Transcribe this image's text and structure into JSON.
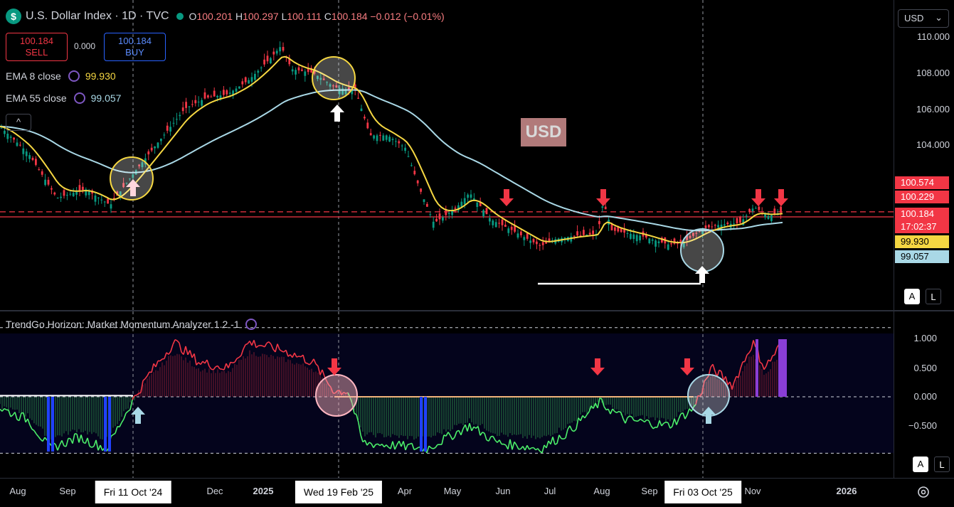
{
  "header": {
    "symbol_icon": "$",
    "title": "U.S. Dollar Index · 1D · TVC",
    "ohlc": [
      {
        "k": "O",
        "v": "100.201"
      },
      {
        "k": "H",
        "v": "100.297"
      },
      {
        "k": "L",
        "v": "100.111"
      },
      {
        "k": "C",
        "v": "100.184"
      }
    ],
    "change": "−0.012 (−0.01%)"
  },
  "trade": {
    "sell_price": "100.184",
    "sell_label": "SELL",
    "spread": "0.000",
    "buy_price": "100.184",
    "buy_label": "BUY"
  },
  "indicators": [
    {
      "label": "EMA 8 close",
      "value": "99.930",
      "color": "#f5d742"
    },
    {
      "label": "EMA 55 close",
      "value": "99.057",
      "color": "#a9d8e6"
    }
  ],
  "collapse_icon": "^",
  "currency_select": "USD",
  "watermark": "USD",
  "price_axis": {
    "ticks": [
      "110.000",
      "108.000",
      "106.000",
      "104.000"
    ],
    "labels": [
      {
        "text": "100.574",
        "bg": "#f23645",
        "color": "#ffffff"
      },
      {
        "text": "100.229",
        "bg": "#f23645",
        "color": "#ffffff"
      },
      {
        "text": "100.184",
        "bg": "#f23645",
        "color": "#ffffff"
      },
      {
        "text": "17:02:37",
        "bg": "#f23645",
        "color": "#ffffff"
      },
      {
        "text": "99.930",
        "bg": "#f5d742",
        "color": "#000000"
      },
      {
        "text": "99.057",
        "bg": "#a9d8e6",
        "color": "#000000"
      }
    ],
    "a_label": "A",
    "l_label": "L"
  },
  "oscillator": {
    "title": "TrendGo Horizon: Market Momentum Analyzer 1.2 -1",
    "ticks": [
      "1.000",
      "0.500",
      "0.000",
      "−0.500"
    ],
    "a_label": "A",
    "l_label": "L"
  },
  "time_axis": {
    "ticks": [
      "Aug",
      "Sep",
      "Dec",
      "2025",
      "Apr",
      "May",
      "Jun",
      "Jul",
      "Aug",
      "Sep",
      "Nov",
      "2026"
    ],
    "highlighted": [
      "Fri 11 Oct '24",
      "Wed 19 Feb '25",
      "Fri 03 Oct '25"
    ]
  },
  "colors": {
    "up": "#089981",
    "down": "#f23645",
    "ema_fast": "#f5d742",
    "ema_slow": "#a9d8e6",
    "osc_bull": "#4cf06a",
    "osc_bear": "#f23645",
    "arrow_red": "#f23645"
  }
}
